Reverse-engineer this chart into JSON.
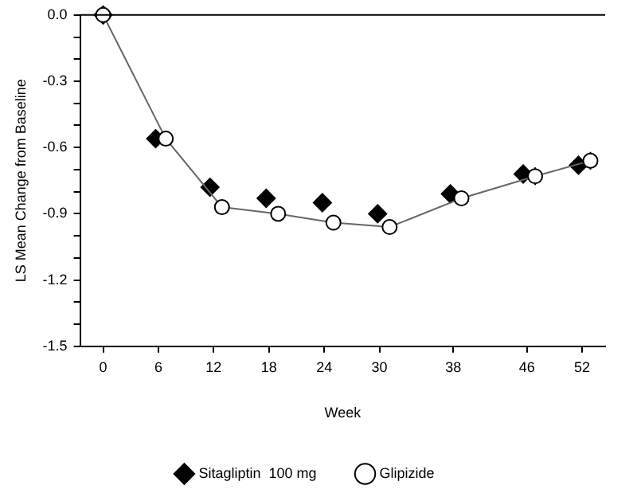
{
  "chart_data": {
    "type": "line",
    "xlabel": "Week",
    "ylabel": "LS Mean Change from Baseline",
    "xlim": [
      -2.5,
      54.5
    ],
    "xticks": [
      0,
      6,
      12,
      18,
      24,
      30,
      38,
      46,
      52
    ],
    "ylim": [
      -1.5,
      0
    ],
    "yticks": [
      {
        "value": -1.5,
        "label": "-1.5"
      },
      {
        "value": -1.4,
        "label": null
      },
      {
        "value": -1.3,
        "label": null
      },
      {
        "value": -1.2,
        "label": "-1.2"
      },
      {
        "value": -1.1,
        "label": null
      },
      {
        "value": -1.0,
        "label": null
      },
      {
        "value": -0.9,
        "label": "-0.9"
      },
      {
        "value": -0.8,
        "label": null
      },
      {
        "value": -0.7,
        "label": null
      },
      {
        "value": -0.6,
        "label": "-0.6"
      },
      {
        "value": -0.5,
        "label": null
      },
      {
        "value": -0.4,
        "label": null
      },
      {
        "value": -0.3,
        "label": "-0.3"
      },
      {
        "value": -0.2,
        "label": null
      },
      {
        "value": -0.1,
        "label": null
      },
      {
        "value": 0,
        "label": "0.0"
      }
    ],
    "ref_lines": [
      {
        "axis": "y",
        "value": 0,
        "color": "#000000"
      }
    ],
    "legend": "bottom",
    "grid": false,
    "series": [
      {
        "name": "Glipizide",
        "type": "line",
        "marker": "circle",
        "color": "#000000",
        "x": [
          0,
          6.8,
          12.9,
          19,
          25,
          31.1,
          38.9,
          46.9,
          52.9
        ],
        "values": [
          0,
          -0.56,
          -0.87,
          -0.9,
          -0.94,
          -0.96,
          -0.83,
          -0.73,
          -0.66
        ],
        "errors": [
          null,
          0.03,
          0.03,
          0.03,
          0.03,
          0.03,
          0.03,
          0.04,
          0.04
        ]
      },
      {
        "name": "Sitagliptin  100 mg",
        "type": "scatter",
        "marker": "diamond",
        "color": "#000000",
        "x": [
          0,
          5.7,
          11.6,
          17.7,
          23.8,
          29.8,
          37.7,
          45.6,
          51.6
        ],
        "values": [
          0,
          -0.56,
          -0.78,
          -0.83,
          -0.85,
          -0.9,
          -0.81,
          -0.72,
          -0.68
        ],
        "errors": [
          null,
          0.03,
          0.03,
          0.03,
          0.03,
          0.03,
          0.03,
          0.04,
          0.04
        ]
      }
    ]
  }
}
